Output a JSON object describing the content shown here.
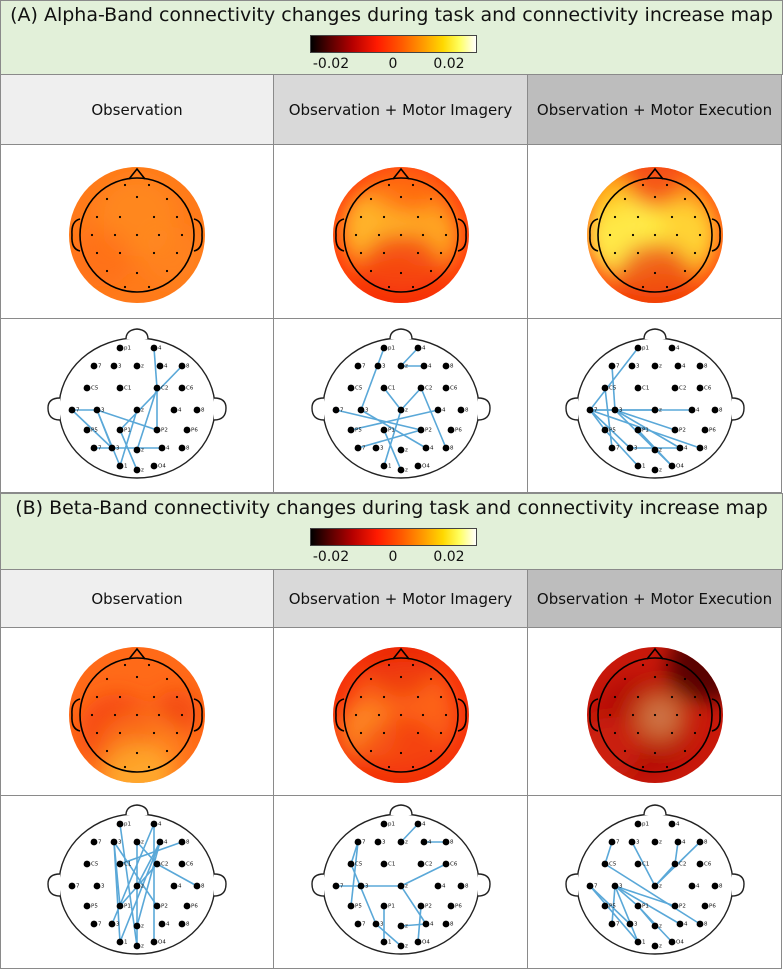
{
  "panels": [
    {
      "title": "(A) Alpha-Band connectivity changes during task and connectivity increase map",
      "colorbar_ticks": [
        "-0.02",
        "0",
        "0.02"
      ],
      "columns": [
        "Observation",
        "Observation + Motor Imagery",
        "Observation + Motor Execution"
      ]
    },
    {
      "title": "(B) Beta-Band connectivity changes during task and connectivity increase map",
      "colorbar_ticks": [
        "-0.02",
        "0",
        "0.02"
      ],
      "columns": [
        "Observation",
        "Observation + Motor Imagery",
        "Observation + Motor Execution"
      ]
    }
  ],
  "colors": {
    "header_bg": "#e2f0d9",
    "connection_line": "#5aa8d8",
    "electrode": "#000000"
  }
}
